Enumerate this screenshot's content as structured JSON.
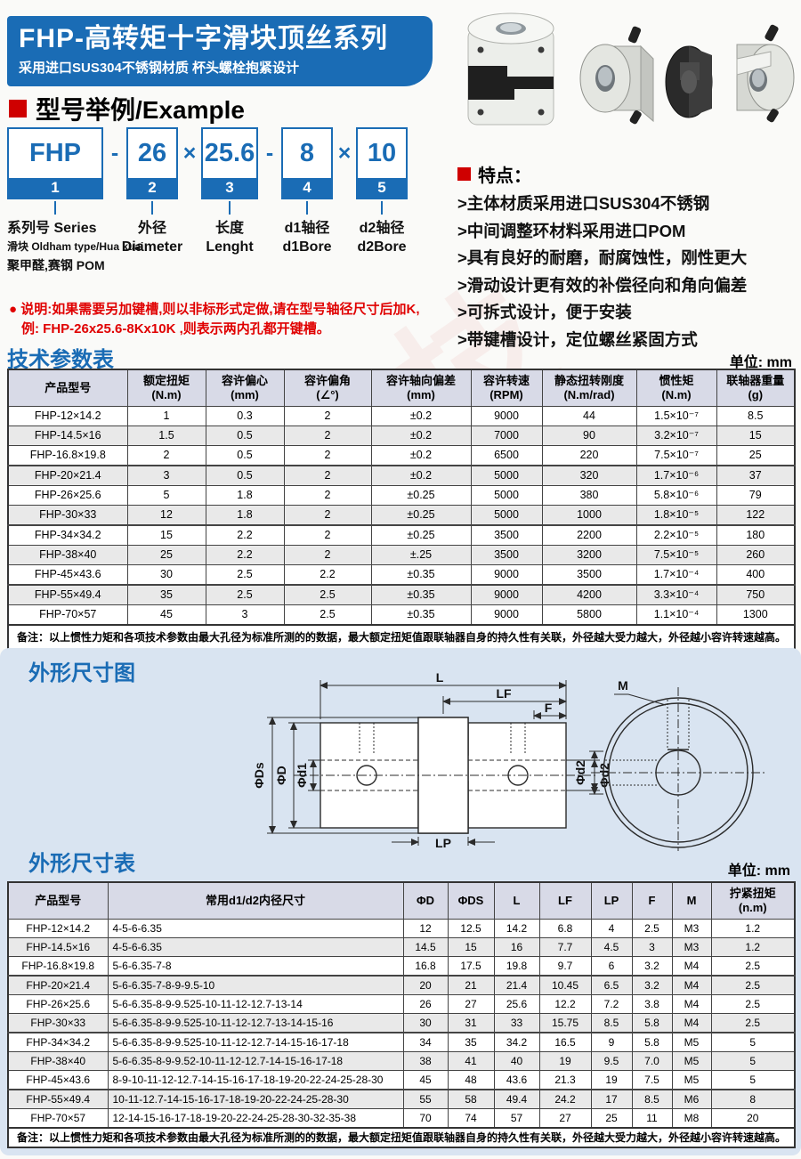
{
  "banner": {
    "title": "FHP-高转矩十字滑块顶丝系列",
    "subtitle": "采用进口SUS304不锈钢材质 杯头螺栓抱紧设计"
  },
  "example": {
    "heading": "型号举例/Example",
    "boxes": [
      {
        "value": "FHP",
        "num": "1"
      },
      {
        "value": "26",
        "num": "2"
      },
      {
        "value": "25.6",
        "num": "3"
      },
      {
        "value": "8",
        "num": "4"
      },
      {
        "value": "10",
        "num": "5"
      }
    ],
    "separators": [
      "-",
      "×",
      "-",
      "×"
    ],
    "labels": [
      {
        "lines": [
          "系列号 Series",
          "滑块 Oldham type/Hua kuai",
          "聚甲醛,赛钢 POM"
        ]
      },
      {
        "lines": [
          "外径",
          "Diameter"
        ]
      },
      {
        "lines": [
          "长度",
          "Lenght"
        ]
      },
      {
        "lines": [
          "d1轴径",
          "d1Bore"
        ]
      },
      {
        "lines": [
          "d2轴径",
          "d2Bore"
        ]
      }
    ],
    "note1": "● 说明:如果需要另加键槽,则以非标形式定做,请在型号轴径尺寸后加K,",
    "note2": "例: FHP-26x25.6-8Kx10K ,则表示两内孔都开键槽。"
  },
  "features": {
    "heading": "特点：",
    "items": [
      ">主体材质采用进口SUS304不锈钢",
      ">中间调整环材料采用进口POM",
      ">具有良好的耐磨，耐腐蚀性，刚性更大",
      ">滑动设计更有效的补偿径向和角向偏差",
      ">可拆式设计，便于安装",
      ">带键槽设计，定位螺丝紧固方式"
    ]
  },
  "tech_table": {
    "title": "技术参数表",
    "unit": "单位: mm",
    "headers": [
      "产品型号",
      "额定扭矩\n(N.m)",
      "容许偏心\n(mm)",
      "容许偏角\n(∠°)",
      "容许轴向偏差\n(mm)",
      "容许转速\n(RPM)",
      "静态扭转刚度\n(N.m/rad)",
      "惯性矩\n(N.m)",
      "联轴器重量\n(g)"
    ],
    "rows": [
      [
        "FHP-12×14.2",
        "1",
        "0.3",
        "2",
        "±0.2",
        "9000",
        "44",
        "1.5×10⁻⁷",
        "8.5"
      ],
      [
        "FHP-14.5×16",
        "1.5",
        "0.5",
        "2",
        "±0.2",
        "7000",
        "90",
        "3.2×10⁻⁷",
        "15"
      ],
      [
        "FHP-16.8×19.8",
        "2",
        "0.5",
        "2",
        "±0.2",
        "6500",
        "220",
        "7.5×10⁻⁷",
        "25"
      ],
      [
        "FHP-20×21.4",
        "3",
        "0.5",
        "2",
        "±0.2",
        "5000",
        "320",
        "1.7×10⁻⁶",
        "37"
      ],
      [
        "FHP-26×25.6",
        "5",
        "1.8",
        "2",
        "±0.25",
        "5000",
        "380",
        "5.8×10⁻⁶",
        "79"
      ],
      [
        "FHP-30×33",
        "12",
        "1.8",
        "2",
        "±0.25",
        "5000",
        "1000",
        "1.8×10⁻⁵",
        "122"
      ],
      [
        "FHP-34×34.2",
        "15",
        "2.2",
        "2",
        "±0.25",
        "3500",
        "2200",
        "2.2×10⁻⁵",
        "180"
      ],
      [
        "FHP-38×40",
        "25",
        "2.2",
        "2",
        "±.25",
        "3500",
        "3200",
        "7.5×10⁻⁵",
        "260"
      ],
      [
        "FHP-45×43.6",
        "30",
        "2.5",
        "2.2",
        "±0.35",
        "9000",
        "3500",
        "1.7×10⁻⁴",
        "400"
      ],
      [
        "FHP-55×49.4",
        "35",
        "2.5",
        "2.5",
        "±0.35",
        "9000",
        "4200",
        "3.3×10⁻⁴",
        "750"
      ],
      [
        "FHP-70×57",
        "45",
        "3",
        "2.5",
        "±0.35",
        "9000",
        "5800",
        "1.1×10⁻⁴",
        "1300"
      ]
    ],
    "note": "备注：以上惯性力矩和各项技术参数由最大孔径为标准所测的的数据，最大额定扭矩值跟联轴器自身的持久性有关联，外径越大受力越大，外径越小容许转速越高。"
  },
  "dim_diagram": {
    "title": "外形尺寸图",
    "L": "L",
    "LF": "LF",
    "F": "F",
    "LP": "LP",
    "M": "M",
    "Ds": "ΦDs",
    "D": "ΦD",
    "d1": "Φd1",
    "d2": "Φd2",
    "d2_front": "Φd2"
  },
  "dim_table": {
    "title": "外形尺寸表",
    "unit": "单位: mm",
    "headers": [
      "产品型号",
      "常用d1/d2内径尺寸",
      "ΦD",
      "ΦDS",
      "L",
      "LF",
      "LP",
      "F",
      "M",
      "拧紧扭矩\n(n.m)"
    ],
    "rows": [
      [
        "FHP-12×14.2",
        "4-5-6-6.35",
        "12",
        "12.5",
        "14.2",
        "6.8",
        "4",
        "2.5",
        "M3",
        "1.2"
      ],
      [
        "FHP-14.5×16",
        "4-5-6-6.35",
        "14.5",
        "15",
        "16",
        "7.7",
        "4.5",
        "3",
        "M3",
        "1.2"
      ],
      [
        "FHP-16.8×19.8",
        "5-6-6.35-7-8",
        "16.8",
        "17.5",
        "19.8",
        "9.7",
        "6",
        "3.2",
        "M4",
        "2.5"
      ],
      [
        "FHP-20×21.4",
        "5-6-6.35-7-8-9-9.5-10",
        "20",
        "21",
        "21.4",
        "10.45",
        "6.5",
        "3.2",
        "M4",
        "2.5"
      ],
      [
        "FHP-26×25.6",
        "5-6-6.35-8-9-9.525-10-11-12-12.7-13-14",
        "26",
        "27",
        "25.6",
        "12.2",
        "7.2",
        "3.8",
        "M4",
        "2.5"
      ],
      [
        "FHP-30×33",
        "5-6-6.35-8-9-9.525-10-11-12-12.7-13-14-15-16",
        "30",
        "31",
        "33",
        "15.75",
        "8.5",
        "5.8",
        "M4",
        "2.5"
      ],
      [
        "FHP-34×34.2",
        "5-6-6.35-8-9-9.525-10-11-12-12.7-14-15-16-17-18",
        "34",
        "35",
        "34.2",
        "16.5",
        "9",
        "5.8",
        "M5",
        "5"
      ],
      [
        "FHP-38×40",
        "5-6-6.35-8-9-9.52-10-11-12-12.7-14-15-16-17-18",
        "38",
        "41",
        "40",
        "19",
        "9.5",
        "7.0",
        "M5",
        "5"
      ],
      [
        "FHP-45×43.6",
        "8-9-10-11-12-12.7-14-15-16-17-18-19-20-22-24-25-28-30",
        "45",
        "48",
        "43.6",
        "21.3",
        "19",
        "7.5",
        "M5",
        "5"
      ],
      [
        "FHP-55×49.4",
        "10-11-12.7-14-15-16-17-18-19-20-22-24-25-28-30",
        "55",
        "58",
        "49.4",
        "24.2",
        "17",
        "8.5",
        "M6",
        "8"
      ],
      [
        "FHP-70×57",
        "12-14-15-16-17-18-19-20-22-24-25-28-30-32-35-38",
        "70",
        "74",
        "57",
        "27",
        "25",
        "11",
        "M8",
        "20"
      ]
    ],
    "note": "备注：以上惯性力矩和各项技术参数由最大孔径为标准所测的的数据，最大额定扭矩值跟联轴器自身的持久性有关联，外径越大受力越大，外径越小容许转速越高。"
  },
  "watermarks": {
    "left": "设备（上海）科技有限",
    "mid": "科技"
  }
}
